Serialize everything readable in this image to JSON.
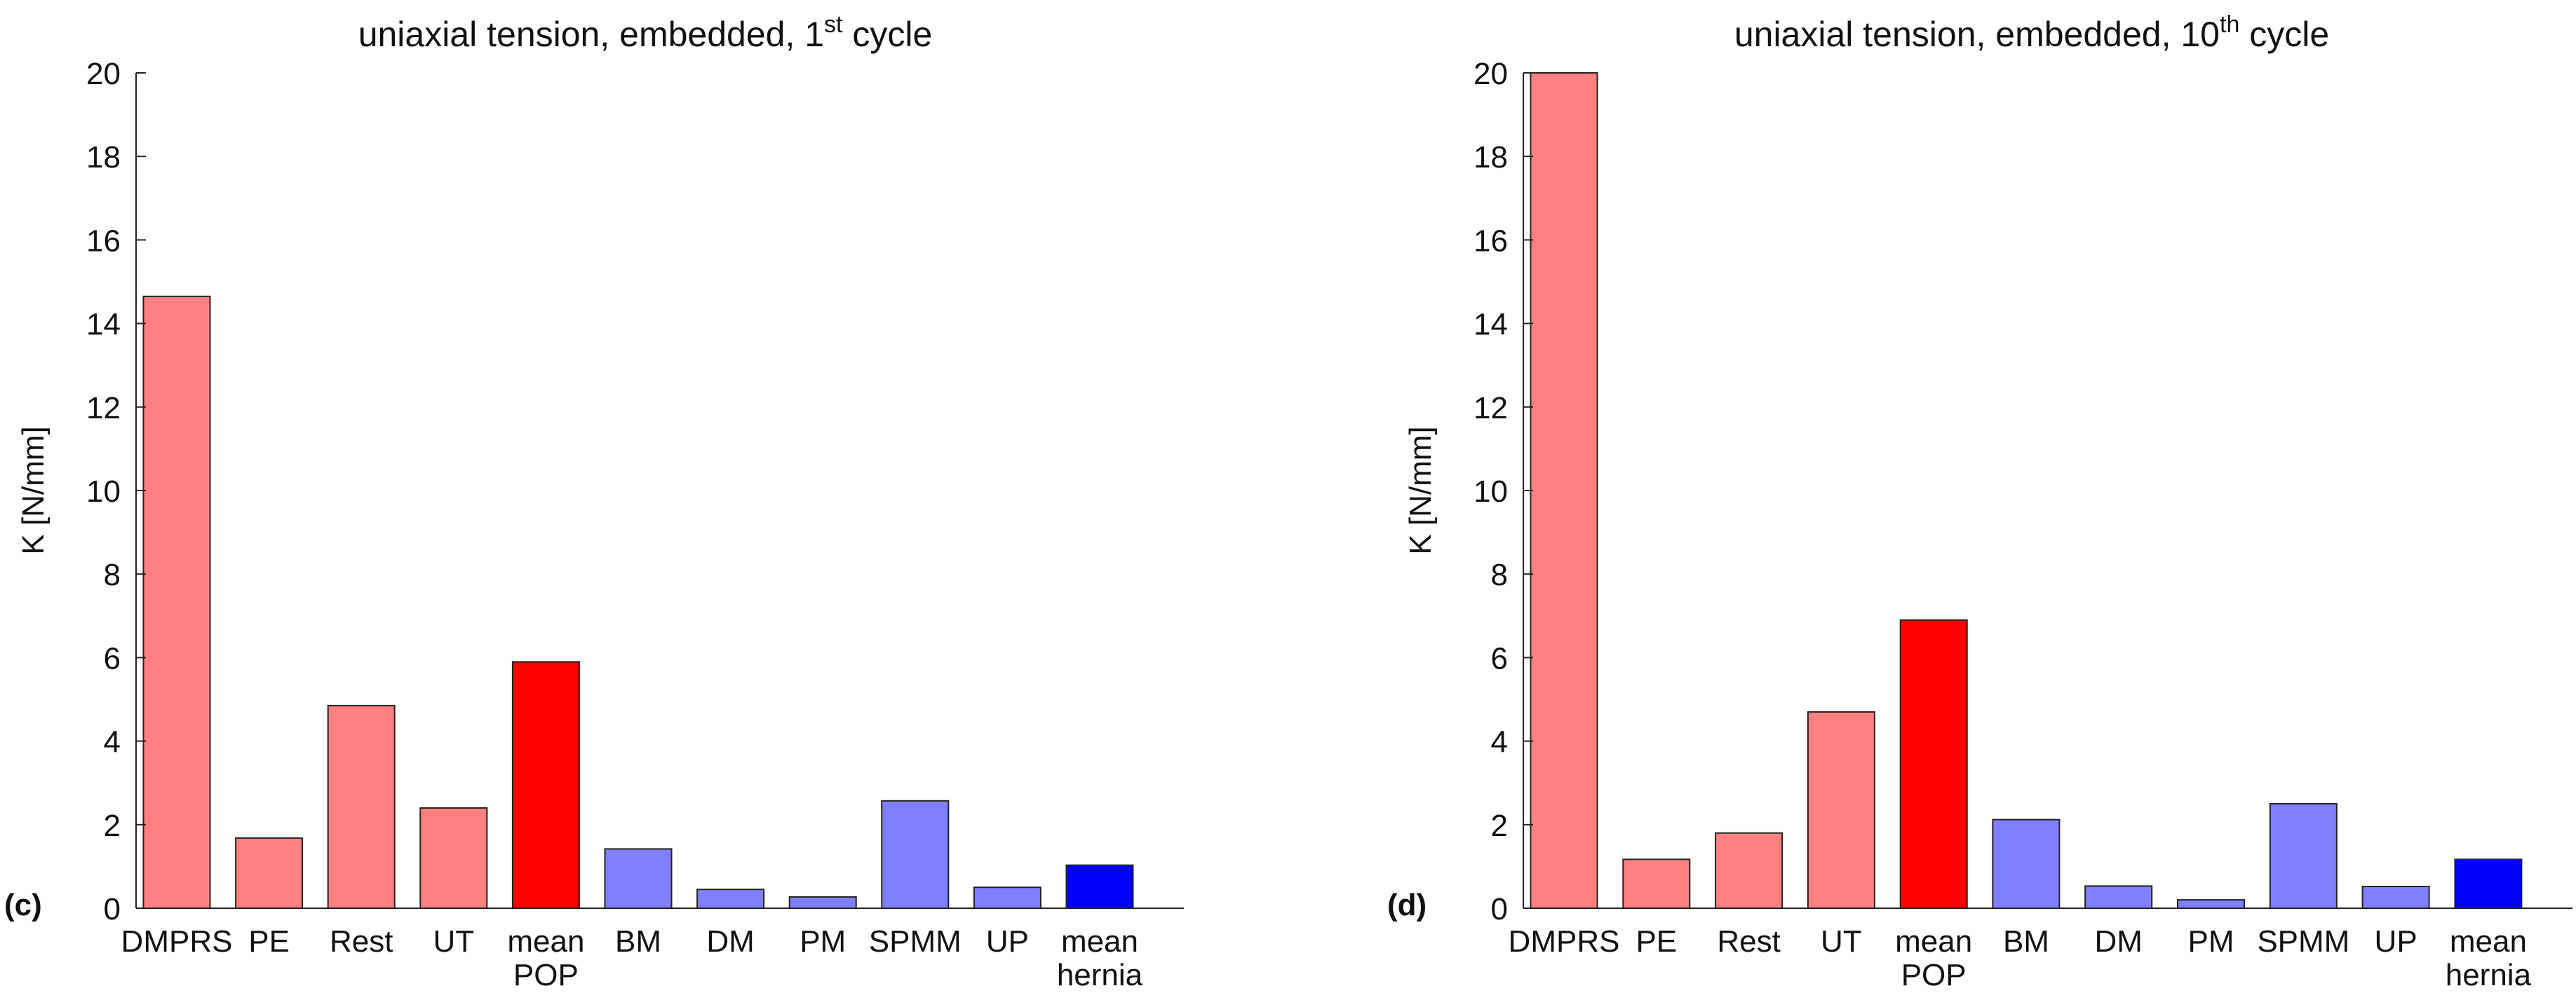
{
  "chart_data": [
    {
      "type": "bar",
      "panel_label": "(c)",
      "title": "uniaxial tension, embedded, 1",
      "title_sup": "st",
      "title_suffix": " cycle",
      "xlabel": "",
      "ylabel": "K [N/mm]",
      "ylim": [
        0,
        20
      ],
      "yticks": [
        0,
        2,
        4,
        6,
        8,
        10,
        12,
        14,
        16,
        18,
        20
      ],
      "categories": [
        [
          "DMPRS"
        ],
        [
          "PE"
        ],
        [
          "Rest"
        ],
        [
          "UT"
        ],
        [
          "mean",
          "POP"
        ],
        [
          "BM"
        ],
        [
          "DM"
        ],
        [
          "PM"
        ],
        [
          "SPMM"
        ],
        [
          "UP"
        ],
        [
          "mean",
          "hernia"
        ]
      ],
      "values": [
        14.65,
        1.68,
        4.85,
        2.4,
        5.9,
        1.42,
        0.45,
        0.27,
        2.57,
        0.5,
        1.03
      ],
      "colors": [
        "#FF8080",
        "#FF8080",
        "#FF8080",
        "#FF8080",
        "#FF0000",
        "#8080FF",
        "#8080FF",
        "#8080FF",
        "#8080FF",
        "#8080FF",
        "#0000FF"
      ]
    },
    {
      "type": "bar",
      "panel_label": "(d)",
      "title": "uniaxial tension, embedded, 10",
      "title_sup": "th",
      "title_suffix": " cycle",
      "xlabel": "",
      "ylabel": "K [N/mm]",
      "ylim": [
        0,
        20
      ],
      "yticks": [
        0,
        2,
        4,
        6,
        8,
        10,
        12,
        14,
        16,
        18,
        20
      ],
      "categories": [
        [
          "DMPRS"
        ],
        [
          "PE"
        ],
        [
          "Rest"
        ],
        [
          "UT"
        ],
        [
          "mean",
          "POP"
        ],
        [
          "BM"
        ],
        [
          "DM"
        ],
        [
          "PM"
        ],
        [
          "SPMM"
        ],
        [
          "UP"
        ],
        [
          "mean",
          "hernia"
        ]
      ],
      "values": [
        20.0,
        1.17,
        1.8,
        4.7,
        6.9,
        2.12,
        0.53,
        0.2,
        2.5,
        0.52,
        1.17
      ],
      "colors": [
        "#FF8080",
        "#FF8080",
        "#FF8080",
        "#FF8080",
        "#FF0000",
        "#8080FF",
        "#8080FF",
        "#8080FF",
        "#8080FF",
        "#8080FF",
        "#0000FF"
      ]
    }
  ]
}
